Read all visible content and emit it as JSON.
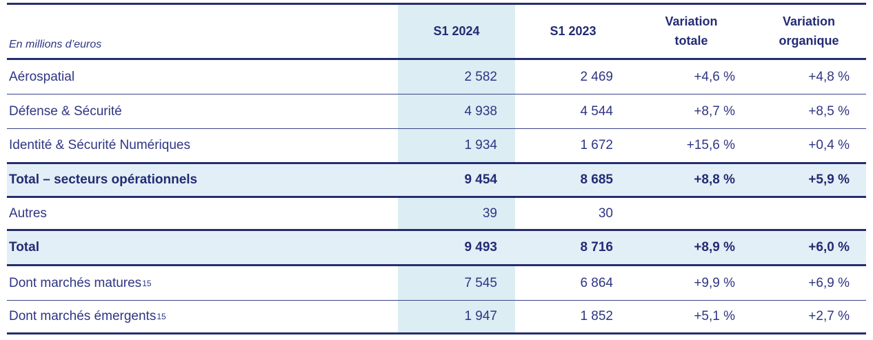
{
  "colors": {
    "navy_text": "#2f3583",
    "navy_bold": "#232b74",
    "rule_line": "#252e6e",
    "column_fill": "#dcedf4",
    "total_row_fill": "#e3eff6"
  },
  "table": {
    "unit_label": "En millions d’euros",
    "headers": {
      "s1_2024": "S1 2024",
      "s1_2023": "S1 2023",
      "variation_totale": "Variation\ntotale",
      "variation_organique": "Variation\norganique"
    },
    "rows": [
      {
        "label": "Aérospatial",
        "s1_2024": "2 582",
        "s1_2023": "2 469",
        "variation_totale": "+4,6 %",
        "variation_organique": "+4,8 %"
      },
      {
        "label": "Défense & Sécurité",
        "s1_2024": "4 938",
        "s1_2023": "4 544",
        "variation_totale": "+8,7 %",
        "variation_organique": "+8,5 %"
      },
      {
        "label": "Identité & Sécurité Numériques",
        "s1_2024": "1 934",
        "s1_2023": "1 672",
        "variation_totale": "+15,6 %",
        "variation_organique": "+0,4 %"
      },
      {
        "label": "Total – secteurs opérationnels",
        "s1_2024": "9 454",
        "s1_2023": "8 685",
        "variation_totale": "+8,8 %",
        "variation_organique": "+5,9 %"
      },
      {
        "label": "Autres",
        "s1_2024": "39",
        "s1_2023": "30",
        "variation_totale": "",
        "variation_organique": ""
      },
      {
        "label": "Total",
        "s1_2024": "9 493",
        "s1_2023": "8 716",
        "variation_totale": "+8,9 %",
        "variation_organique": "+6,0 %"
      },
      {
        "label": "Dont marchés matures",
        "sup": "15",
        "s1_2024": "7 545",
        "s1_2023": "6 864",
        "variation_totale": "+9,9 %",
        "variation_organique": "+6,9 %"
      },
      {
        "label": "Dont marchés émergents",
        "sup": "15",
        "s1_2024": "1 947",
        "s1_2023": "1 852",
        "variation_totale": "+5,1 %",
        "variation_organique": "+2,7 %"
      }
    ]
  }
}
